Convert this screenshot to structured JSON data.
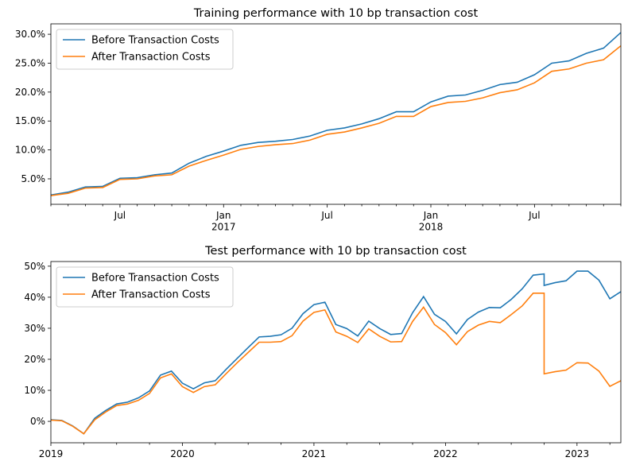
{
  "chart_data": [
    {
      "type": "line",
      "title": "Training performance with 10 bp transaction cost",
      "x": [
        "2016-03",
        "2016-04",
        "2016-05",
        "2016-06",
        "2016-07",
        "2016-08",
        "2016-09",
        "2016-10",
        "2016-11",
        "2016-12",
        "2017-01",
        "2017-02",
        "2017-03",
        "2017-04",
        "2017-05",
        "2017-06",
        "2017-07",
        "2017-08",
        "2017-09",
        "2017-10",
        "2017-11",
        "2017-12",
        "2018-01",
        "2018-02",
        "2018-03",
        "2018-04",
        "2018-05",
        "2018-06",
        "2018-07",
        "2018-08",
        "2018-09",
        "2018-10",
        "2018-11",
        "2018-12"
      ],
      "series": [
        {
          "name": "Before Transaction Costs",
          "color": "#1f77b4",
          "values": [
            2.2,
            2.7,
            3.6,
            3.7,
            5.1,
            5.2,
            5.7,
            6.0,
            7.7,
            8.9,
            9.8,
            10.8,
            11.3,
            11.5,
            11.8,
            12.4,
            13.4,
            13.8,
            14.5,
            15.4,
            16.6,
            16.6,
            18.3,
            19.3,
            19.5,
            20.3,
            21.3,
            21.7,
            23.0,
            25.0,
            25.4,
            26.7,
            27.6,
            30.3
          ]
        },
        {
          "name": "After Transaction Costs",
          "color": "#ff7f0e",
          "values": [
            2.1,
            2.5,
            3.4,
            3.5,
            4.9,
            5.0,
            5.5,
            5.7,
            7.2,
            8.2,
            9.1,
            10.1,
            10.6,
            10.9,
            11.1,
            11.7,
            12.7,
            13.1,
            13.8,
            14.6,
            15.8,
            15.8,
            17.5,
            18.2,
            18.4,
            19.0,
            19.9,
            20.4,
            21.6,
            23.6,
            24.0,
            25.0,
            25.6,
            28.0
          ]
        }
      ],
      "xlim": [
        "2016-03",
        "2018-12"
      ],
      "xticks": [
        {
          "value": "2016-07",
          "label": "Jul"
        },
        {
          "value": "2017-01",
          "label": "Jan\n2017"
        },
        {
          "value": "2017-07",
          "label": "Jul"
        },
        {
          "value": "2018-01",
          "label": "Jan\n2018"
        },
        {
          "value": "2018-07",
          "label": "Jul"
        }
      ],
      "ylim": [
        0.6,
        31.8
      ],
      "yticks": [
        {
          "value": 5,
          "label": "5.0%"
        },
        {
          "value": 10,
          "label": "10.0%"
        },
        {
          "value": 15,
          "label": "15.0%"
        },
        {
          "value": 20,
          "label": "20.0%"
        },
        {
          "value": 25,
          "label": "25.0%"
        },
        {
          "value": 30,
          "label": "30.0%"
        }
      ],
      "legend": "upper-left"
    },
    {
      "type": "line",
      "title": "Test performance with 10 bp transaction cost",
      "x": [
        "2019-01",
        "2019-02",
        "2019-03",
        "2019-04",
        "2019-05",
        "2019-06",
        "2019-07",
        "2019-08",
        "2019-09",
        "2019-10",
        "2019-11",
        "2019-12",
        "2020-01",
        "2020-02",
        "2020-03",
        "2020-04",
        "2020-05",
        "2020-06",
        "2020-07",
        "2020-08",
        "2020-09",
        "2020-10",
        "2020-11",
        "2020-12",
        "2021-01",
        "2021-02",
        "2021-03",
        "2021-04",
        "2021-05",
        "2021-06",
        "2021-07",
        "2021-08",
        "2021-09",
        "2021-10",
        "2021-11",
        "2021-12",
        "2022-01",
        "2022-02",
        "2022-03",
        "2022-04",
        "2022-05",
        "2022-06",
        "2022-07",
        "2022-08",
        "2022-09",
        "2022-10",
        "2022-10",
        "2022-11",
        "2022-12",
        "2023-01",
        "2023-02",
        "2023-03",
        "2023-04",
        "2023-05"
      ],
      "series": [
        {
          "name": "Before Transaction Costs",
          "color": "#1f77b4",
          "values": [
            0.5,
            0.3,
            -1.5,
            -4.0,
            1.0,
            3.5,
            5.6,
            6.2,
            7.6,
            9.8,
            14.9,
            16.2,
            12.3,
            10.5,
            12.4,
            13.1,
            16.8,
            20.3,
            23.8,
            27.2,
            27.4,
            27.9,
            30.0,
            34.7,
            37.6,
            38.4,
            31.2,
            29.9,
            27.5,
            32.3,
            29.9,
            28.0,
            28.3,
            35.0,
            40.2,
            34.5,
            32.2,
            28.2,
            32.8,
            35.2,
            36.7,
            36.6,
            39.3,
            42.7,
            47.1,
            47.5,
            43.8,
            44.7,
            45.3,
            48.4,
            48.4,
            45.5,
            39.5,
            41.8
          ]
        },
        {
          "name": "After Transaction Costs",
          "color": "#ff7f0e",
          "values": [
            0.4,
            0.2,
            -1.6,
            -4.0,
            0.5,
            3.0,
            5.1,
            5.6,
            6.8,
            9.0,
            14.0,
            15.3,
            11.2,
            9.3,
            11.2,
            11.8,
            15.4,
            18.9,
            22.2,
            25.5,
            25.5,
            25.7,
            27.6,
            32.3,
            35.1,
            35.9,
            28.8,
            27.4,
            25.4,
            29.8,
            27.4,
            25.6,
            25.7,
            32.2,
            36.8,
            31.2,
            28.6,
            24.7,
            28.9,
            31.0,
            32.2,
            31.8,
            34.4,
            37.2,
            41.3,
            41.3,
            15.3,
            16.0,
            16.5,
            18.9,
            18.8,
            16.2,
            11.3,
            13.1
          ]
        }
      ],
      "xlim": [
        "2019-01",
        "2023-05"
      ],
      "xticks": [
        {
          "value": "2019-01",
          "label": "2019"
        },
        {
          "value": "2020-01",
          "label": "2020"
        },
        {
          "value": "2021-01",
          "label": "2021"
        },
        {
          "value": "2022-01",
          "label": "2022"
        },
        {
          "value": "2023-01",
          "label": "2023"
        }
      ],
      "ylim": [
        -6.9,
        51.5
      ],
      "yticks": [
        {
          "value": 0,
          "label": "0%"
        },
        {
          "value": 10,
          "label": "10%"
        },
        {
          "value": 20,
          "label": "20%"
        },
        {
          "value": 30,
          "label": "30%"
        },
        {
          "value": 40,
          "label": "40%"
        },
        {
          "value": 50,
          "label": "50%"
        }
      ],
      "legend": "upper-left"
    }
  ]
}
